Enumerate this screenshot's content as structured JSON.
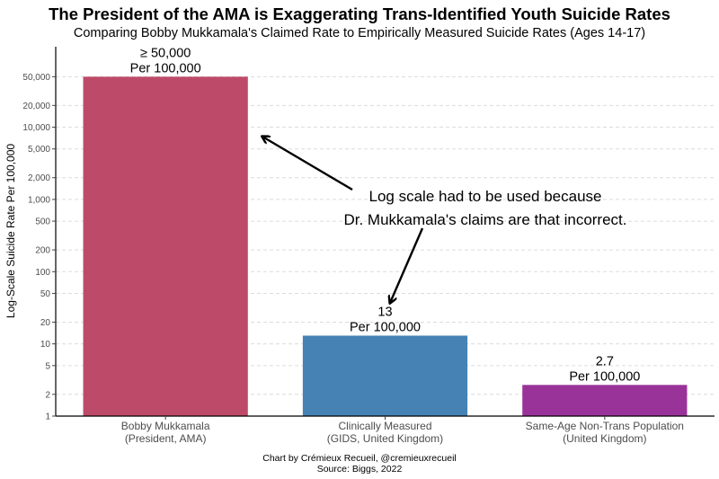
{
  "chart_data": {
    "type": "bar",
    "title": "The President of the AMA is Exaggerating Trans-Identified Youth Suicide Rates",
    "subtitle": "Comparing Bobby Mukkamala's Claimed Rate to Empirically Measured Suicide Rates (Ages 14-17)",
    "ylabel": "Log-Scale Suicide Rate Per 100,000",
    "y_scale": "log",
    "ylim": [
      1,
      130000
    ],
    "y_ticks": [
      1,
      2,
      5,
      10,
      20,
      50,
      100,
      200,
      500,
      1000,
      2000,
      5000,
      10000,
      20000,
      50000
    ],
    "y_tick_labels": [
      "1",
      "2",
      "5",
      "10",
      "20",
      "50",
      "100",
      "200",
      "500",
      "1,000",
      "2,000",
      "5,000",
      "10,000",
      "20,000",
      "50,000"
    ],
    "grid": "horizontal dashed",
    "categories": [
      [
        "Bobby Mukkamala",
        "(President, AMA)"
      ],
      [
        "Clinically Measured",
        "(GIDS, United Kingdom)"
      ],
      [
        "Same-Age Non-Trans Population",
        "(United Kingdom)"
      ]
    ],
    "values": [
      50000,
      13,
      2.7
    ],
    "value_labels": [
      [
        "≥ 50,000",
        "Per 100,000"
      ],
      [
        "13",
        "Per 100,000"
      ],
      [
        "2.7",
        "Per 100,000"
      ]
    ],
    "colors": [
      "#bd4a69",
      "#4682b4",
      "#993399"
    ],
    "annotation": [
      "Log scale had to be used because",
      "Dr. Mukkamala's claims are that incorrect."
    ]
  },
  "caption": {
    "line1": "Chart by Crémieux Recueil, @cremieuxrecueil",
    "line2": "Source: Biggs, 2022"
  }
}
